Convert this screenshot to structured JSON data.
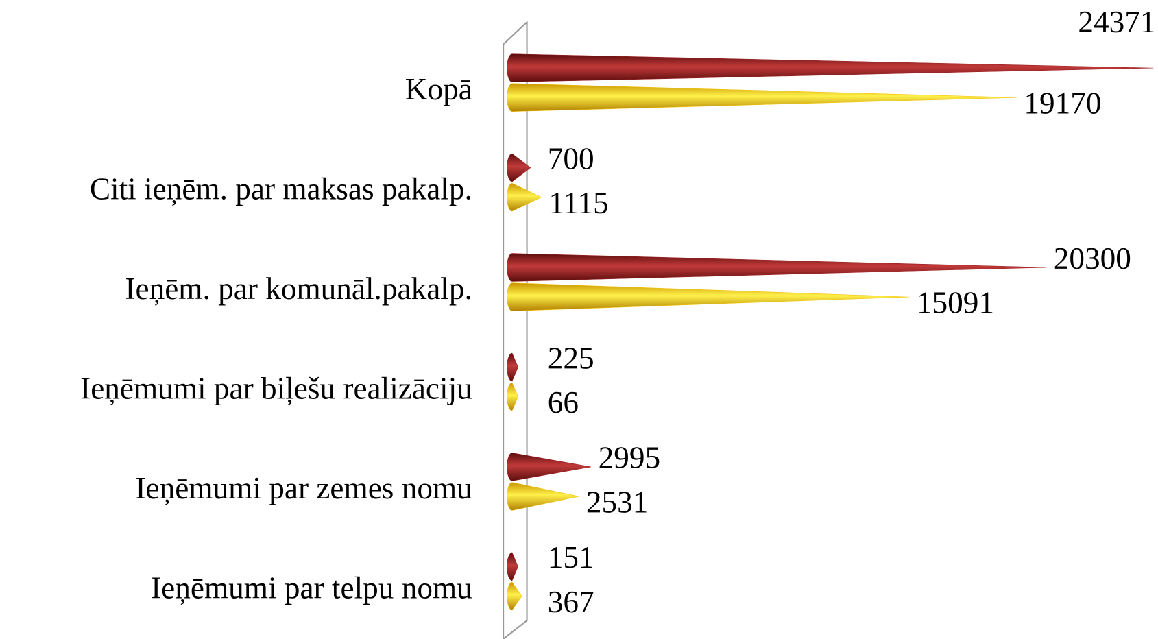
{
  "chart_data": {
    "type": "bar",
    "categories": [
      "Kopā",
      "Citi ieņēm. par maksas pakalp.",
      "Ieņēm. par komunāl.pakalp.",
      "Ieņēmumi par biļešu realizāciju",
      "Ieņēmumi par zemes nomu",
      "Ieņēmumi par telpu nomu"
    ],
    "series": [
      {
        "color": "#9e1f1f",
        "values": [
          24371,
          700,
          20300,
          225,
          2995,
          151
        ]
      },
      {
        "color": "#f2c200",
        "values": [
          19170,
          1115,
          15091,
          66,
          2531,
          367
        ]
      }
    ],
    "orientation": "horizontal",
    "shape": "cone"
  }
}
